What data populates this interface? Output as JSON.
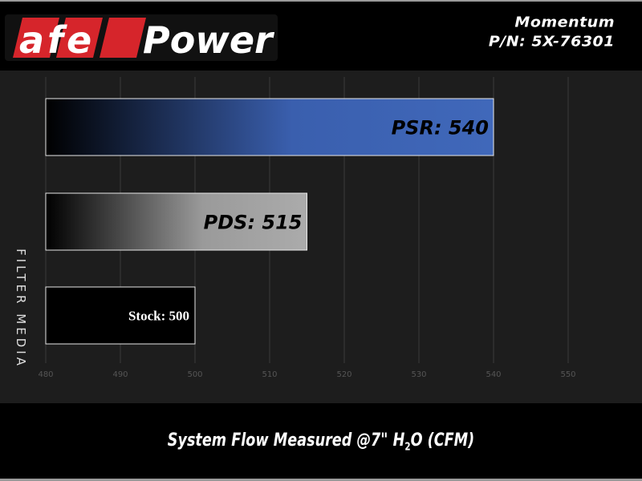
{
  "header": {
    "logo_text": "aFePower",
    "model": "Momentum",
    "part_number": "P/N: 5X-76301"
  },
  "colors": {
    "psr_bar": "#3f66b8",
    "pds_bar": "#a8a8a8",
    "stock_bar": "#000000",
    "logo_red": "#d6252b"
  },
  "chart_data": {
    "type": "bar",
    "orientation": "horizontal",
    "categories": [
      "PSR",
      "PDS",
      "Stock"
    ],
    "values": [
      540,
      515,
      500
    ],
    "data_labels": [
      "PSR: 540",
      "PDS: 515",
      "Stock: 500"
    ],
    "xlabel": "System Flow Measured @7\" H2O (CFM)",
    "xlabel_main": "System Flow Measured @7\" H",
    "xlabel_sub": "2",
    "xlabel_tail": "O (CFM)",
    "ylabel": "FILTER MEDIA",
    "xlim": [
      480,
      550
    ],
    "xticks": [
      "480",
      "490",
      "500",
      "510",
      "520",
      "530",
      "540",
      "550"
    ],
    "grid": true
  }
}
